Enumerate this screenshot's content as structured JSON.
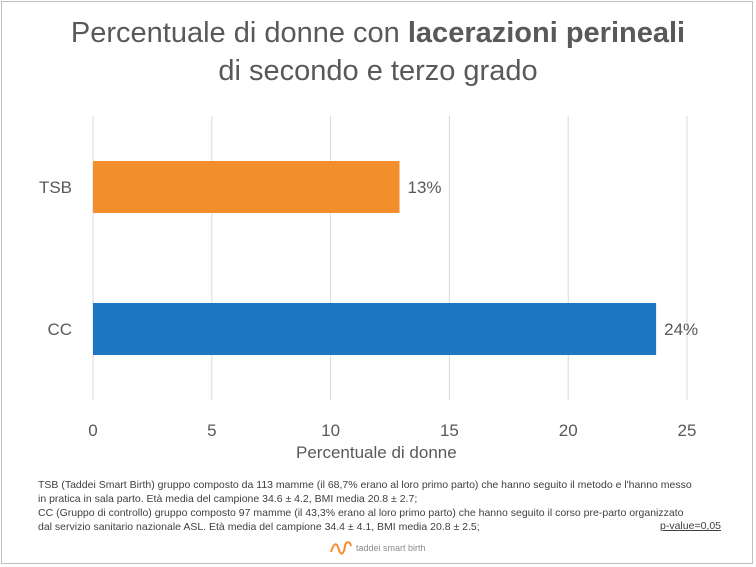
{
  "title": {
    "part1": "Percentuale di donne con ",
    "bold": "lacerazioni perineali",
    "line2": "di secondo e terzo grado"
  },
  "chart_data": {
    "type": "bar",
    "orientation": "horizontal",
    "title": "Percentuale di donne con lacerazioni perineali di secondo e terzo grado",
    "xlabel": "Percentuale di donne",
    "ylabel": "",
    "categories": [
      "TSB",
      "CC"
    ],
    "values": [
      12.9,
      23.7
    ],
    "data_labels": [
      "13%",
      "24%"
    ],
    "colors": [
      "#f28e2b",
      "#1f77c2"
    ],
    "xlim": [
      0,
      25
    ],
    "xticks": [
      0,
      5,
      10,
      15,
      20,
      25
    ],
    "grid": true,
    "legend": "none"
  },
  "notes": {
    "line1": "TSB (Taddei Smart Birth) gruppo composto da 113 mamme (il 68,7% erano al loro primo parto) che hanno seguito il metodo e l'hanno messo",
    "line2": " in pratica in sala parto. Età media del campione 34.6 ± 4.2, BMI media 20.8 ± 2.7;",
    "line3": "CC (Gruppo di controllo) gruppo composto 97 mamme (il 43,3% erano al loro primo parto) che hanno seguito il corso pre-parto organizzato",
    "line4": "dal servizio sanitario nazionale ASL. Età media del campione 34.4 ± 4.1, BMI media 20.8 ± 2.5;",
    "pvalue": "p-value=0,05"
  },
  "logo": {
    "text": "taddei smart birth",
    "icon": "wave-logo-icon",
    "color": "#f28e2b"
  }
}
